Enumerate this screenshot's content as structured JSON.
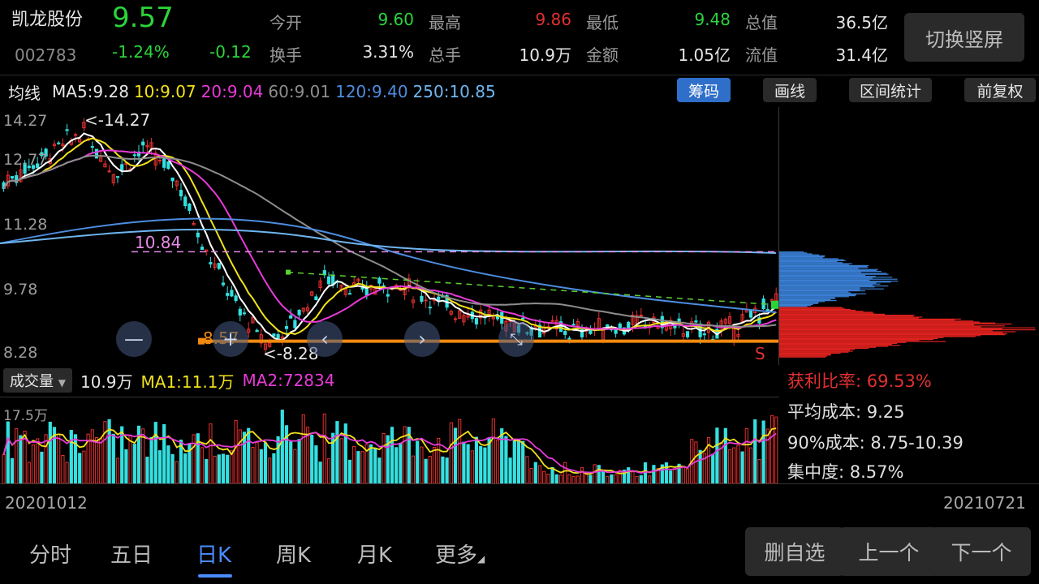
{
  "header": {
    "stock_name": "凯龙股份",
    "stock_code": "002783",
    "price": "9.57",
    "change_pct": "-1.24%",
    "change_amt": "-0.12",
    "quotes": [
      {
        "label": "今开",
        "value": "9.60",
        "color": "#2bd43a"
      },
      {
        "label": "最高",
        "value": "9.86",
        "color": "#e03030"
      },
      {
        "label": "最低",
        "value": "9.48",
        "color": "#2bd43a"
      },
      {
        "label": "总值",
        "value": "36.5亿",
        "color": "#e6e6e6"
      },
      {
        "label": "换手",
        "value": "3.31%",
        "color": "#e6e6e6"
      },
      {
        "label": "总手",
        "value": "10.9万",
        "color": "#e6e6e6"
      },
      {
        "label": "金额",
        "value": "1.05亿",
        "color": "#e6e6e6"
      },
      {
        "label": "流值",
        "value": "31.4亿",
        "color": "#e6e6e6"
      }
    ],
    "switch_label": "切换竖屏"
  },
  "ma_bar": {
    "title": "均线",
    "items": [
      {
        "text": "MA5:9.28",
        "color": "#e6e6e6"
      },
      {
        "text": "10:9.07",
        "color": "#f2e21a"
      },
      {
        "text": "20:9.04",
        "color": "#e73ad8"
      },
      {
        "text": "60:9.01",
        "color": "#8d8d8d"
      },
      {
        "text": "120:9.40",
        "color": "#4d8de0"
      },
      {
        "text": "250:10.85",
        "color": "#6fb6f0"
      }
    ],
    "tools": [
      "筹码",
      "画线",
      "区间统计",
      "前复权"
    ]
  },
  "price_chart": {
    "y_ticks": [
      "14.27",
      "12.77",
      "11.28",
      "9.78",
      "8.28"
    ],
    "high_label": "<-14.27",
    "low_label": "<-8.28",
    "line_label_1084": "10.84",
    "line_label_857": "8.57",
    "marker_s": "S"
  },
  "chips": {
    "profit_ratio": "获利比率: 69.53%",
    "avg_cost": "平均成本: 9.25",
    "cost_90": "90%成本:  8.75-10.39",
    "concentration": "集中度: 8.57%"
  },
  "volume": {
    "indicator": "成交量",
    "value": "10.9万",
    "ma1": "MA1:11.1万",
    "ma2": "MA2:72834",
    "y_tick": "17.5万"
  },
  "dates": {
    "start": "20201012",
    "end": "20210721"
  },
  "tabs": [
    "分时",
    "五日",
    "日K",
    "周K",
    "月K",
    "更多"
  ],
  "bottom_buttons": [
    "删自选",
    "上一个",
    "下一个"
  ]
}
